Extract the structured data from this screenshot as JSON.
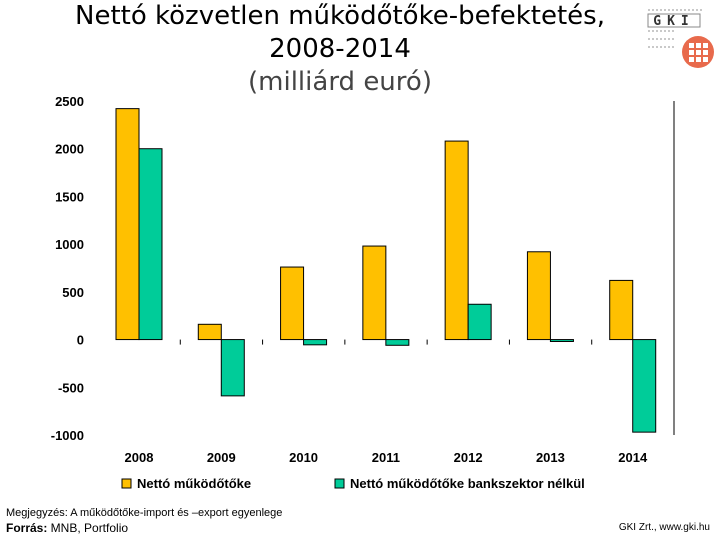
{
  "title": {
    "line1": "Nettó közvetlen működőtőke-befektetés,",
    "line2": "2008-2014",
    "subtitle": "(milliárd euró)"
  },
  "logo": {
    "text": "GKI",
    "icon": "gki-logo-icon"
  },
  "chart_data": {
    "type": "bar",
    "categories": [
      "2008",
      "2009",
      "2010",
      "2011",
      "2012",
      "2013",
      "2014"
    ],
    "series": [
      {
        "name": "Nettó működőtőke",
        "color": "#FFC000",
        "values": [
          2420,
          160,
          760,
          980,
          2080,
          920,
          620
        ]
      },
      {
        "name": "Nettó működőtőke bankszektor nélkül",
        "color": "#00CC99",
        "values": [
          2000,
          -590,
          -55,
          -60,
          370,
          -20,
          -970
        ]
      }
    ],
    "ylim": [
      -1000,
      2500
    ],
    "yticks": [
      "2500",
      "2000",
      "1500",
      "1000",
      "500",
      "0",
      "-500",
      "-1000"
    ],
    "grid": false,
    "legend_position": "bottom"
  },
  "footer": {
    "note": "Megjegyzés: A működőtőke-import és –export egyenlege",
    "source_label": "Forrás:",
    "source_text": " MNB, Portfolio",
    "credit": "GKI Zrt., www.gki.hu"
  }
}
